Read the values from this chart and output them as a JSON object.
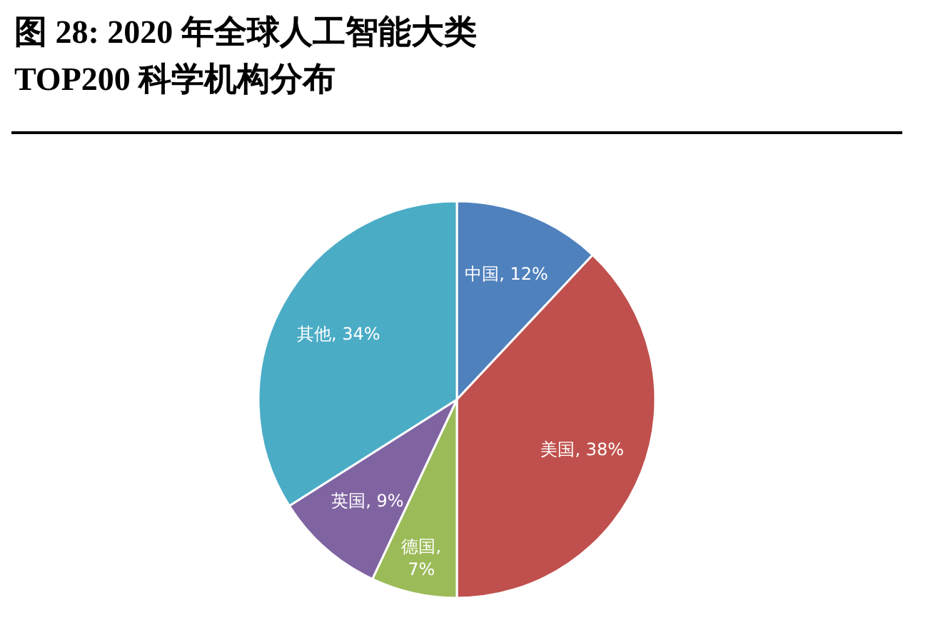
{
  "chart_data": {
    "type": "pie",
    "title": "图 28: 2020 年全球人工智能大类TOP200 科学机构分布",
    "categories": [
      "中国, 12%",
      "美国, 38%",
      "德国, 7%",
      "英国, 9%",
      "其他, 34%"
    ],
    "values": [
      12,
      38,
      7,
      9,
      34
    ],
    "colors": [
      "#4f81bd",
      "#c0504d",
      "#9bbb59",
      "#8064a2",
      "#4bacc6"
    ]
  }
}
